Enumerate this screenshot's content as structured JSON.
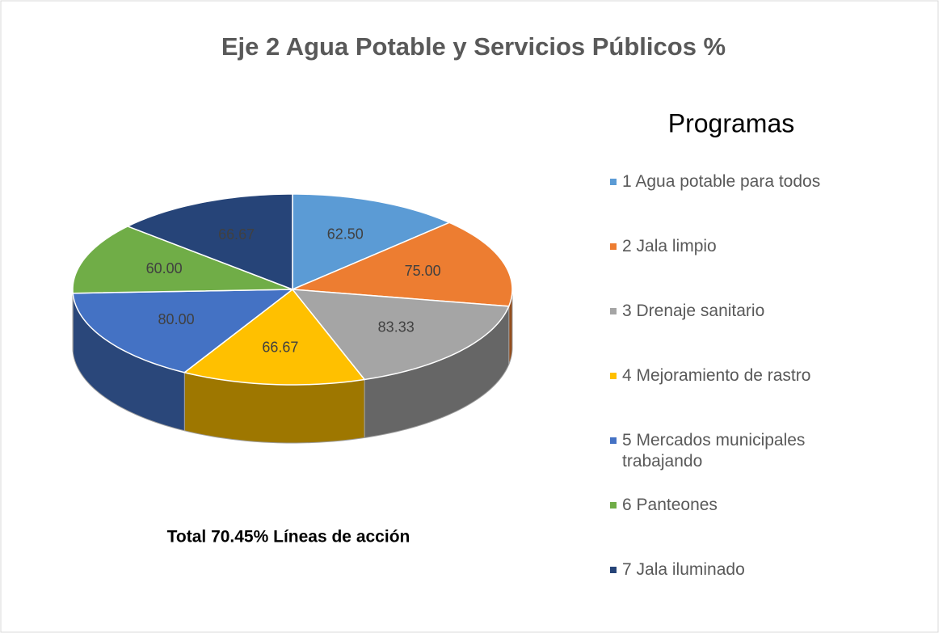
{
  "chart_data": {
    "type": "pie",
    "title": "Eje 2 Agua Potable y Servicios Públicos  %",
    "legend_title": "Programas",
    "annotation": "Total 70.45% Líneas de acción",
    "categories": [
      "1 Agua potable para todos",
      "2 Jala limpio",
      "3 Drenaje sanitario",
      "4 Mejoramiento de rastro",
      "5 Mercados municipales trabajando",
      "6 Panteones",
      "7 Jala iluminado"
    ],
    "values": [
      62.5,
      75,
      83.33,
      66.67,
      80,
      60,
      66.67
    ],
    "value_labels": [
      "62.50",
      "75.00",
      "83.33",
      "66.67",
      "80.00",
      "60.00",
      "66.67"
    ],
    "colors": [
      "#5b9bd5",
      "#ed7d31",
      "#a5a5a5",
      "#ffc000",
      "#4472c4",
      "#70ad47",
      "#264478"
    ],
    "legend": "right"
  }
}
